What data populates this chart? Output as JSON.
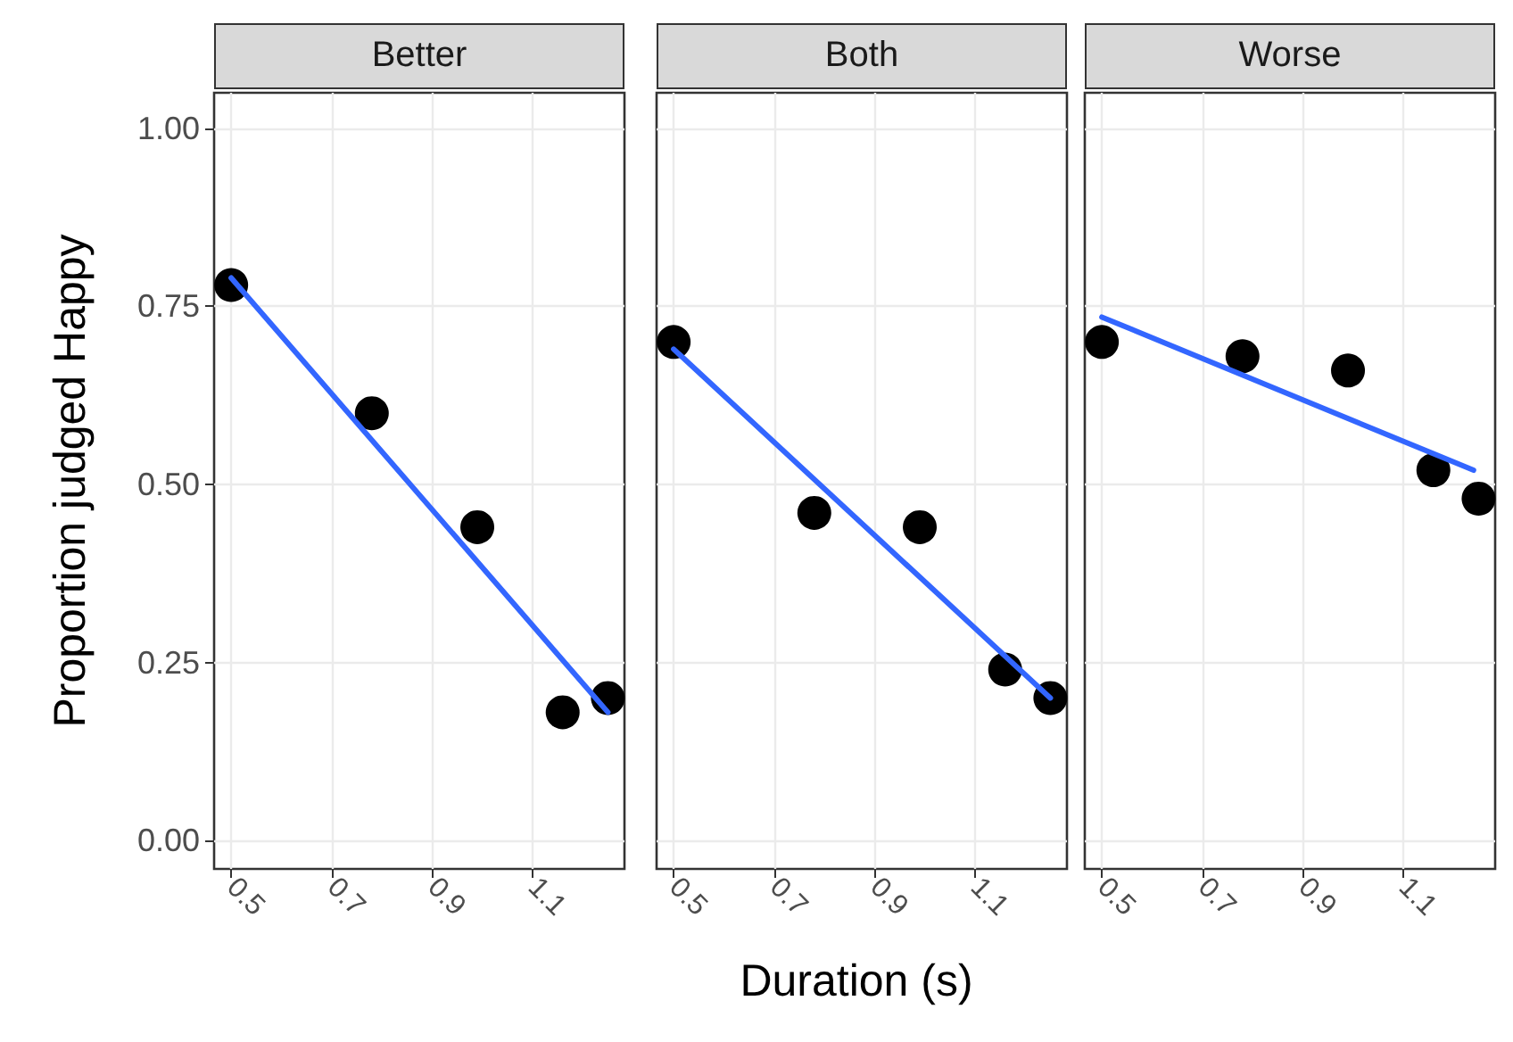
{
  "chart_data": [
    {
      "type": "scatter",
      "title": "Better",
      "ylabel": "Proportion judged Happy",
      "xlim": [
        0.466,
        1.283
      ],
      "xticks": [
        0.5,
        0.7,
        0.9,
        1.1
      ],
      "ylim": [
        -0.04,
        1.05
      ],
      "yticks": [
        {
          "value": 0,
          "label": "0.00"
        },
        {
          "value": 0.25,
          "label": "0.25"
        },
        {
          "value": 0.5,
          "label": "0.50"
        },
        {
          "value": 0.75,
          "label": "0.75"
        },
        {
          "value": 1,
          "label": "1.00"
        }
      ],
      "grid": true,
      "marker": "circle",
      "series": [
        {
          "x": [
            0.5,
            0.78,
            0.99,
            1.16,
            1.25
          ],
          "values": [
            0.78,
            0.6,
            0.44,
            0.18,
            0.2
          ],
          "color": "#000000"
        },
        {
          "type": "line",
          "marker": "none",
          "line_style": "solid",
          "x": [
            0.5,
            1.25
          ],
          "values": [
            0.79,
            0.18
          ],
          "color": "#3366ff"
        }
      ]
    },
    {
      "type": "scatter",
      "title": "Both",
      "xlabel": "Duration (s)",
      "tick_labels": "x",
      "xlim": [
        0.466,
        1.283
      ],
      "xticks": [
        0.5,
        0.7,
        0.9,
        1.1
      ],
      "ylim": [
        -0.04,
        1.05
      ],
      "yticks": [
        0,
        0.25,
        0.5,
        0.75,
        1
      ],
      "grid": true,
      "marker": "circle",
      "series": [
        {
          "x": [
            0.5,
            0.78,
            0.99,
            1.16,
            1.25
          ],
          "values": [
            0.7,
            0.46,
            0.44,
            0.24,
            0.2
          ],
          "color": "#000000"
        },
        {
          "type": "line",
          "marker": "none",
          "line_style": "solid",
          "x": [
            0.5,
            1.25
          ],
          "values": [
            0.69,
            0.2
          ],
          "color": "#3366ff"
        }
      ]
    },
    {
      "type": "scatter",
      "title": "Worse",
      "tick_labels": "x",
      "xlim": [
        0.466,
        1.283
      ],
      "xticks": [
        0.5,
        0.7,
        0.9,
        1.1
      ],
      "ylim": [
        -0.04,
        1.05
      ],
      "yticks": [
        0,
        0.25,
        0.5,
        0.75,
        1
      ],
      "grid": true,
      "marker": "circle",
      "series": [
        {
          "x": [
            0.5,
            0.78,
            0.99,
            1.16,
            1.25
          ],
          "values": [
            0.7,
            0.68,
            0.66,
            0.52,
            0.48
          ],
          "color": "#000000"
        },
        {
          "type": "line",
          "marker": "none",
          "line_style": "solid",
          "x": [
            0.5,
            1.24
          ],
          "values": [
            0.735,
            0.52
          ],
          "color": "#3366ff"
        }
      ]
    }
  ]
}
